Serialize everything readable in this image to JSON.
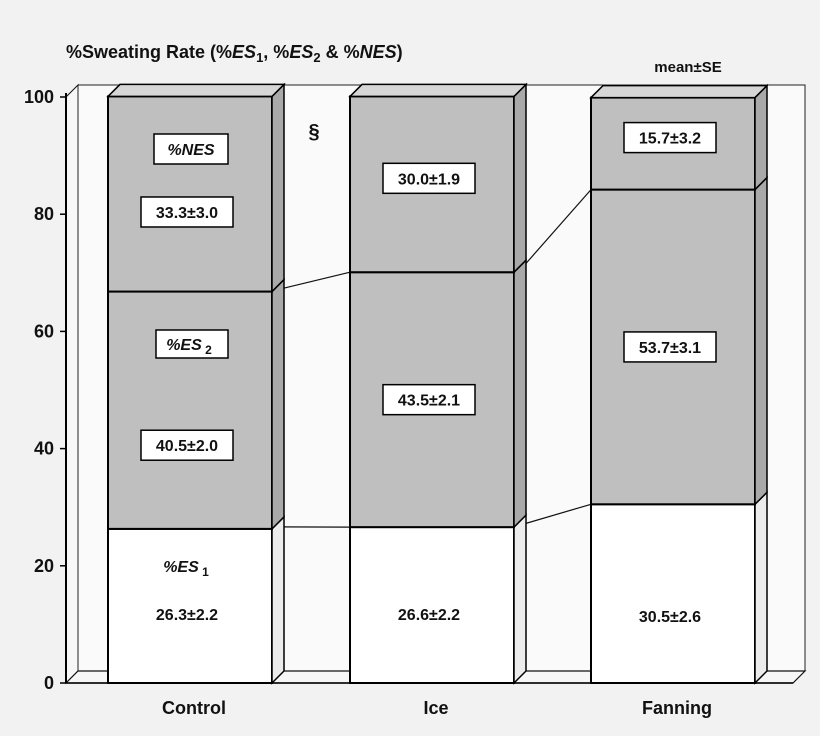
{
  "chart_data": {
    "type": "bar",
    "stacked": true,
    "title_parts": [
      {
        "text": "%Sweating Rate (%",
        "italic": false,
        "sub": false
      },
      {
        "text": "ES",
        "italic": true,
        "sub": false
      },
      {
        "text": "1",
        "italic": false,
        "sub": true
      },
      {
        "text": ", %",
        "italic": false,
        "sub": false
      },
      {
        "text": "ES",
        "italic": true,
        "sub": false
      },
      {
        "text": "2",
        "italic": false,
        "sub": true
      },
      {
        "text": " & %",
        "italic": false,
        "sub": false
      },
      {
        "text": "NES",
        "italic": true,
        "sub": false
      },
      {
        "text": ")",
        "italic": false,
        "sub": false
      }
    ],
    "note": "mean±SE",
    "categories": [
      "Control",
      "Ice",
      "Fanning"
    ],
    "ylim": [
      0,
      100
    ],
    "yticks": [
      0,
      20,
      40,
      60,
      80,
      100
    ],
    "grid": false,
    "significance_marker": {
      "symbol": "§",
      "category": "Control"
    },
    "series": [
      {
        "legend_parts": [
          {
            "text": "%ES",
            "sub": false
          },
          {
            "text": " 1",
            "sub": true
          }
        ],
        "values": [
          26.3,
          26.6,
          30.5
        ],
        "labels": [
          "26.3±2.2",
          "26.6±2.2",
          "30.5±2.6"
        ],
        "boxed_labels": false,
        "color": "#ffffff"
      },
      {
        "legend_parts": [
          {
            "text": "%ES",
            "sub": false
          },
          {
            "text": " 2",
            "sub": true
          }
        ],
        "values": [
          40.5,
          43.5,
          53.7
        ],
        "labels": [
          "40.5±2.0",
          "43.5±2.1",
          "53.7±3.1"
        ],
        "boxed_labels": true,
        "color": "#bfbfbf"
      },
      {
        "legend_parts": [
          {
            "text": "%NES",
            "sub": false
          }
        ],
        "values": [
          33.3,
          30.0,
          15.7
        ],
        "labels": [
          "33.3±3.0",
          "30.0±1.9",
          "15.7±3.2"
        ],
        "boxed_labels": true,
        "color": "#bfbfbf"
      }
    ]
  }
}
